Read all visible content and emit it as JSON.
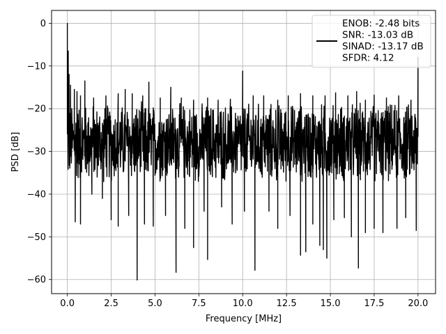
{
  "chart_data": {
    "type": "line",
    "title": "",
    "xlabel": "Frequency [MHz]",
    "ylabel": "PSD [dB]",
    "xlim": [
      -0.9,
      21.0
    ],
    "ylim": [
      -63.3,
      3.0
    ],
    "xticks": [
      0.0,
      2.5,
      5.0,
      7.5,
      10.0,
      12.5,
      15.0,
      17.5,
      20.0
    ],
    "xtick_labels": [
      "0.0",
      "2.5",
      "5.0",
      "7.5",
      "10.0",
      "12.5",
      "15.0",
      "17.5",
      "20.0"
    ],
    "yticks": [
      0,
      -10,
      -20,
      -30,
      -40,
      -50,
      -60
    ],
    "ytick_labels": [
      "0",
      "−10",
      "−20",
      "−30",
      "−40",
      "−50",
      "−60"
    ],
    "grid": true,
    "legend_position": "top-right",
    "legend_lines": [
      "ENOB: -2.48 bits",
      "SNR: -13.03 dB",
      "SINAD: -13.17 dB",
      "SFDR: 4.12"
    ],
    "series": [
      {
        "color": "#000000",
        "noise_band": {
          "upper_typical": -18,
          "lower_typical": -38,
          "center": -28
        },
        "peaks": [
          {
            "x": 0.0,
            "y": 0.0
          },
          {
            "x": 0.05,
            "y": -6.5
          },
          {
            "x": 0.1,
            "y": -12.0
          },
          {
            "x": 0.18,
            "y": -14.5
          },
          {
            "x": 0.25,
            "y": -20.0
          },
          {
            "x": 0.4,
            "y": -15.5
          },
          {
            "x": 0.55,
            "y": -16.0
          },
          {
            "x": 0.75,
            "y": -17.0
          },
          {
            "x": 1.0,
            "y": -13.5
          },
          {
            "x": 1.5,
            "y": -17.5
          },
          {
            "x": 2.2,
            "y": -17.0
          },
          {
            "x": 2.9,
            "y": -16.5
          },
          {
            "x": 3.3,
            "y": -15.5
          },
          {
            "x": 3.7,
            "y": -16.5
          },
          {
            "x": 4.3,
            "y": -17.0
          },
          {
            "x": 4.65,
            "y": -13.8
          },
          {
            "x": 5.3,
            "y": -17.5
          },
          {
            "x": 5.9,
            "y": -15.0
          },
          {
            "x": 6.5,
            "y": -17.5
          },
          {
            "x": 7.2,
            "y": -18.0
          },
          {
            "x": 8.0,
            "y": -17.5
          },
          {
            "x": 8.6,
            "y": -18.0
          },
          {
            "x": 9.3,
            "y": -17.8
          },
          {
            "x": 10.0,
            "y": -11.2
          },
          {
            "x": 10.6,
            "y": -17.0
          },
          {
            "x": 11.2,
            "y": -17.0
          },
          {
            "x": 12.0,
            "y": -18.0
          },
          {
            "x": 12.6,
            "y": -17.0
          },
          {
            "x": 13.3,
            "y": -16.5
          },
          {
            "x": 14.0,
            "y": -17.0
          },
          {
            "x": 14.7,
            "y": -17.0
          },
          {
            "x": 15.3,
            "y": -16.3
          },
          {
            "x": 16.0,
            "y": -17.0
          },
          {
            "x": 16.5,
            "y": -16.0
          },
          {
            "x": 17.0,
            "y": -18.0
          },
          {
            "x": 17.5,
            "y": -16.8
          },
          {
            "x": 18.2,
            "y": -17.5
          },
          {
            "x": 18.9,
            "y": -17.0
          },
          {
            "x": 19.6,
            "y": -18.0
          },
          {
            "x": 20.0,
            "y": -8.0
          }
        ],
        "dips": [
          {
            "x": 0.45,
            "y": -46.5
          },
          {
            "x": 0.75,
            "y": -47.0
          },
          {
            "x": 1.4,
            "y": -40.0
          },
          {
            "x": 2.0,
            "y": -41.0
          },
          {
            "x": 2.5,
            "y": -46.0
          },
          {
            "x": 2.9,
            "y": -47.5
          },
          {
            "x": 3.5,
            "y": -45.0
          },
          {
            "x": 3.98,
            "y": -60.1
          },
          {
            "x": 4.4,
            "y": -47.0
          },
          {
            "x": 4.9,
            "y": -47.5
          },
          {
            "x": 5.6,
            "y": -45.0
          },
          {
            "x": 6.2,
            "y": -58.3
          },
          {
            "x": 6.7,
            "y": -48.0
          },
          {
            "x": 7.2,
            "y": -52.5
          },
          {
            "x": 7.8,
            "y": -44.0
          },
          {
            "x": 8.0,
            "y": -55.3
          },
          {
            "x": 8.8,
            "y": -43.0
          },
          {
            "x": 9.4,
            "y": -47.0
          },
          {
            "x": 10.1,
            "y": -44.0
          },
          {
            "x": 10.7,
            "y": -57.8
          },
          {
            "x": 11.5,
            "y": -44.0
          },
          {
            "x": 12.0,
            "y": -48.0
          },
          {
            "x": 12.7,
            "y": -45.0
          },
          {
            "x": 13.3,
            "y": -54.3
          },
          {
            "x": 13.6,
            "y": -53.5
          },
          {
            "x": 14.0,
            "y": -47.0
          },
          {
            "x": 14.4,
            "y": -52.0
          },
          {
            "x": 14.6,
            "y": -53.0
          },
          {
            "x": 14.8,
            "y": -55.0
          },
          {
            "x": 15.2,
            "y": -46.0
          },
          {
            "x": 15.8,
            "y": -45.5
          },
          {
            "x": 16.2,
            "y": -50.0
          },
          {
            "x": 16.6,
            "y": -57.3
          },
          {
            "x": 17.0,
            "y": -49.0
          },
          {
            "x": 17.5,
            "y": -48.0
          },
          {
            "x": 18.0,
            "y": -49.0
          },
          {
            "x": 18.8,
            "y": -48.0
          },
          {
            "x": 19.3,
            "y": -45.5
          },
          {
            "x": 19.9,
            "y": -48.5
          }
        ]
      }
    ]
  }
}
